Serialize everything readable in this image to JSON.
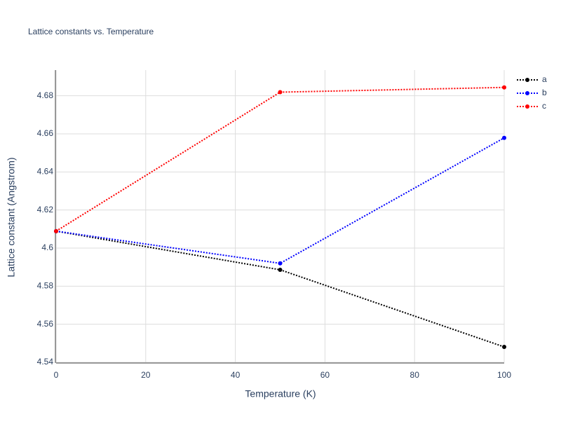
{
  "chart_data": {
    "type": "line",
    "title": "Lattice constants vs. Temperature",
    "x_label": "Temperature (K)",
    "y_label": "Lattice constant (Angstrom)",
    "x": [
      0,
      50,
      100
    ],
    "series": [
      {
        "name": "a",
        "color": "#000000",
        "values": [
          4.6089,
          4.5886,
          4.5481
        ]
      },
      {
        "name": "b",
        "color": "#0000ff",
        "values": [
          4.6089,
          4.592,
          4.6579
        ]
      },
      {
        "name": "c",
        "color": "#ff0000",
        "values": [
          4.6089,
          4.6819,
          4.6844
        ]
      }
    ],
    "xlim": [
      0,
      100
    ],
    "xticks": [
      0,
      20,
      40,
      60,
      80,
      100
    ],
    "ylim": [
      4.54,
      4.6935
    ],
    "yticks": [
      4.54,
      4.56,
      4.58,
      4.6,
      4.62,
      4.64,
      4.66,
      4.68
    ],
    "grid": true,
    "legend": "top-right"
  }
}
